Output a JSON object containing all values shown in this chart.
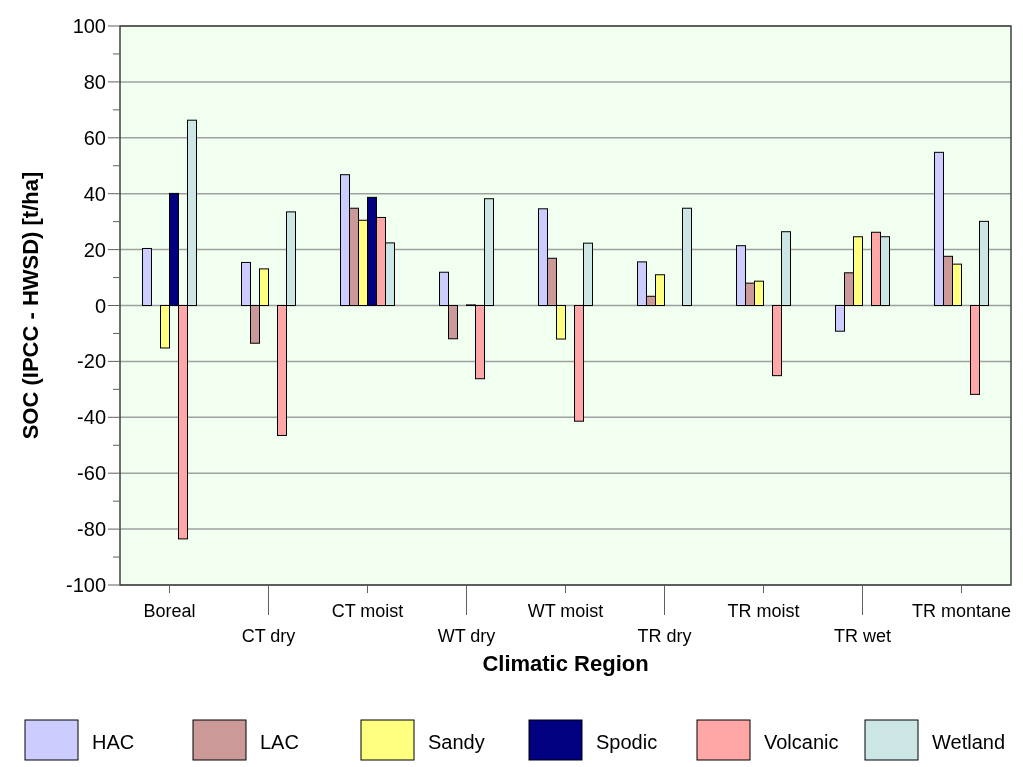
{
  "chart_data": {
    "type": "bar",
    "xlabel": "Climatic Region",
    "ylabel": "SOC (IPCC - HWSD) [t/ha]",
    "categories": [
      "Boreal",
      "CT dry",
      "CT moist",
      "WT dry",
      "WT moist",
      "TR dry",
      "TR moist",
      "TR wet",
      "TR montane"
    ],
    "series": [
      {
        "name": "HAC",
        "color": "#ccccff",
        "values": [
          20.4,
          15.4,
          46.8,
          11.9,
          34.6,
          15.6,
          21.4,
          -9.2,
          54.8
        ]
      },
      {
        "name": "LAC",
        "color": "#cc9999",
        "values": [
          null,
          -13.5,
          34.8,
          -11.9,
          16.9,
          3.3,
          8.0,
          11.7,
          17.6
        ]
      },
      {
        "name": "Sandy",
        "color": "#ffff80",
        "values": [
          -15.2,
          13.1,
          30.5,
          null,
          -12.0,
          11.0,
          8.7,
          24.6,
          14.8
        ]
      },
      {
        "name": "Spodic",
        "color": "#000080",
        "values": [
          40.1,
          null,
          38.7,
          0.2,
          null,
          null,
          null,
          null,
          null
        ]
      },
      {
        "name": "Volcanic",
        "color": "#ffa6a6",
        "values": [
          -83.5,
          -46.5,
          31.5,
          -26.2,
          -41.4,
          null,
          -25.1,
          26.2,
          -31.8
        ]
      },
      {
        "name": "Wetland",
        "color": "#cce6e6",
        "values": [
          66.3,
          33.5,
          22.4,
          38.2,
          22.3,
          34.8,
          26.4,
          24.6,
          30.1
        ]
      }
    ],
    "ylim": [
      -100,
      100
    ],
    "yticks": [
      -100,
      {
        "value": -90,
        "label": null
      },
      -80,
      {
        "value": -70,
        "label": null
      },
      -60,
      {
        "value": -50,
        "label": null
      },
      -40,
      {
        "value": -30,
        "label": null
      },
      -20,
      {
        "value": -10,
        "label": null
      },
      0,
      {
        "value": 10,
        "label": null
      },
      20,
      {
        "value": 30,
        "label": null
      },
      40,
      {
        "value": 50,
        "label": null
      },
      60,
      {
        "value": 70,
        "label": null
      },
      80,
      {
        "value": 90,
        "label": null
      },
      100
    ],
    "grid": "y",
    "legend": "bottom"
  }
}
